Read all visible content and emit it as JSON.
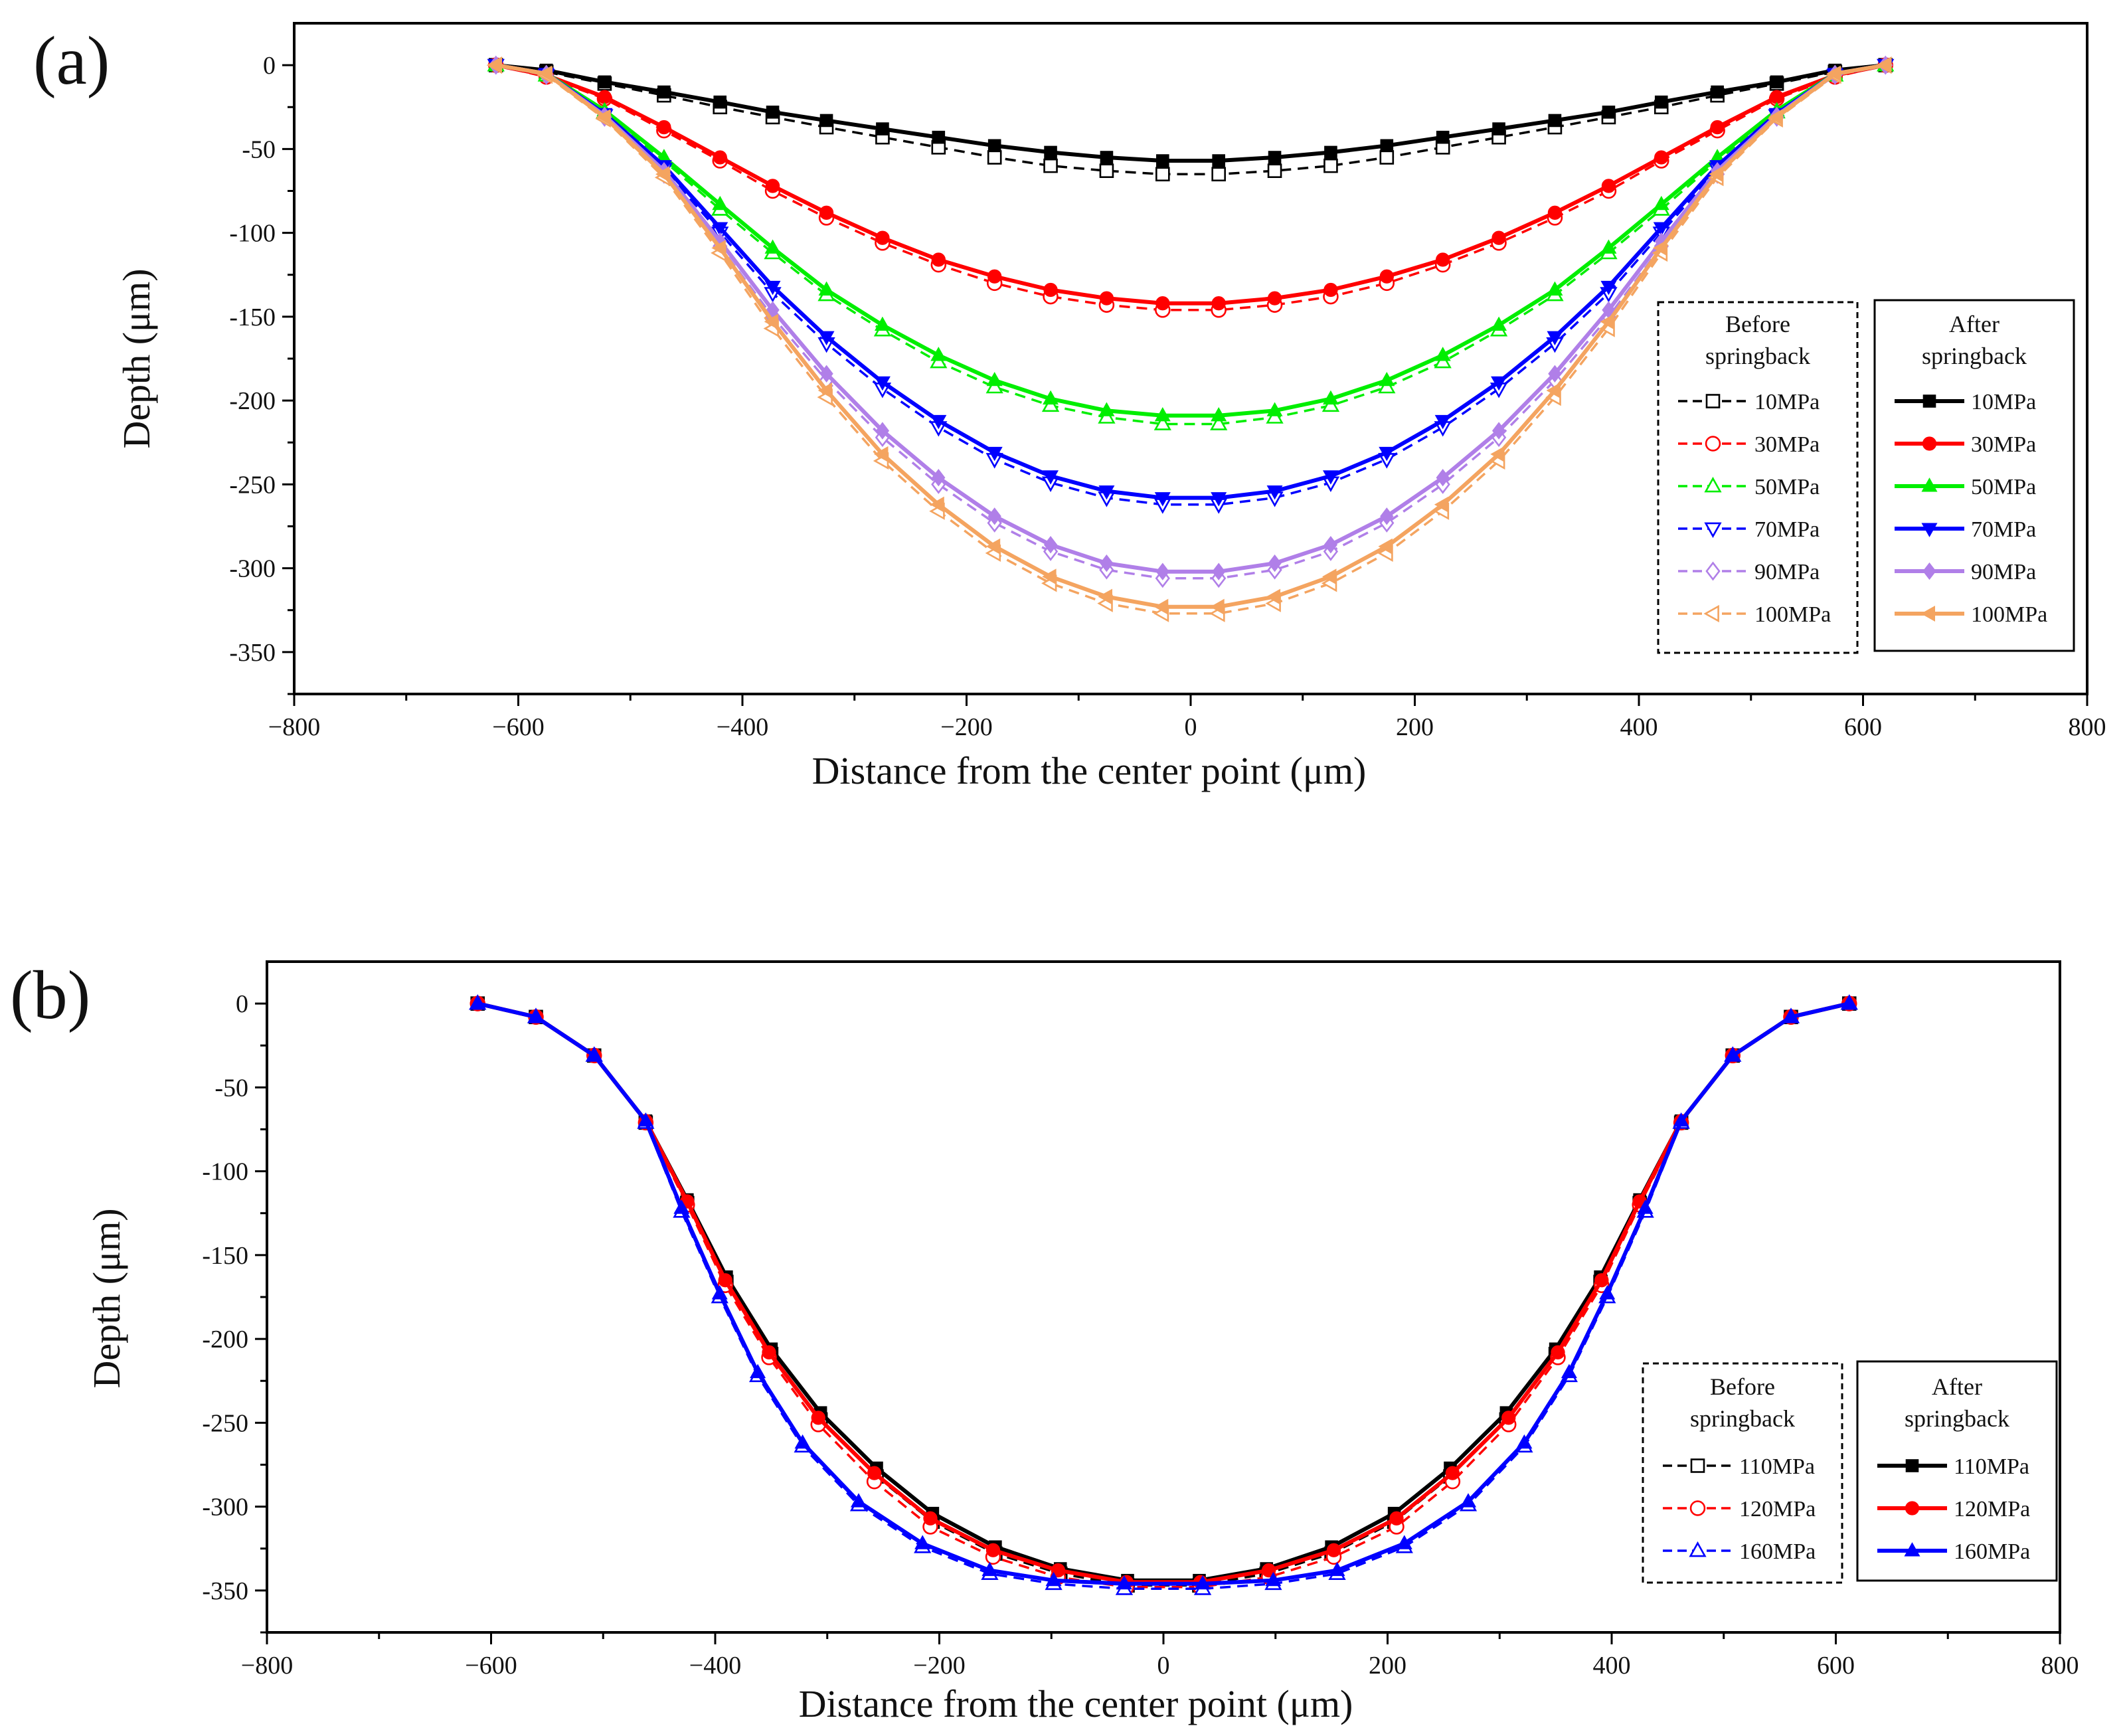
{
  "chart_data": [
    {
      "panel_label": "(a)",
      "type": "line",
      "xlabel": "Distance from the center point (μm)",
      "ylabel": "Depth (μm)",
      "xlim": [
        -800,
        800
      ],
      "ylim": [
        -375,
        25
      ],
      "xticks": [
        -800,
        -600,
        -400,
        -200,
        0,
        200,
        400,
        600,
        800
      ],
      "xtick_labels": [
        "−800",
        "−600",
        "−400",
        "−200",
        "0",
        "200",
        "400",
        "600",
        "800"
      ],
      "yticks": [
        0,
        -50,
        -100,
        -150,
        -200,
        -250,
        -300,
        -350
      ],
      "ytick_labels": [
        "0",
        "-50",
        "-100",
        "-150",
        "-200",
        "-250",
        "-300",
        "-350"
      ],
      "x": [
        -620,
        -575,
        -523,
        -470,
        -420,
        -373,
        -325,
        -275,
        -225,
        -175,
        -125,
        -75,
        -25,
        25,
        75,
        125,
        175,
        225,
        275,
        325,
        373,
        420,
        470,
        523,
        575,
        620
      ],
      "legend_groups": [
        {
          "title": "Before springback",
          "title_lines": [
            "Before",
            "springback"
          ],
          "style": "dashed",
          "filled": false
        },
        {
          "title": "After springback",
          "title_lines": [
            "After",
            "springback"
          ],
          "style": "solid",
          "filled": true
        }
      ],
      "series": [
        {
          "name": "10MPa",
          "color": "#000000",
          "marker": "square",
          "before": [
            0,
            -4,
            -11,
            -18,
            -25,
            -31,
            -37,
            -43,
            -49,
            -55,
            -60,
            -63,
            -65,
            -65,
            -63,
            -60,
            -55,
            -49,
            -43,
            -37,
            -31,
            -25,
            -18,
            -11,
            -4,
            0
          ],
          "after": [
            0,
            -3,
            -10,
            -16,
            -22,
            -28,
            -33,
            -38,
            -43,
            -48,
            -52,
            -55,
            -57,
            -57,
            -55,
            -52,
            -48,
            -43,
            -38,
            -33,
            -28,
            -22,
            -16,
            -10,
            -3,
            0
          ]
        },
        {
          "name": "30MPa",
          "color": "#ff0000",
          "marker": "circle",
          "before": [
            0,
            -7,
            -20,
            -39,
            -57,
            -75,
            -91,
            -106,
            -119,
            -130,
            -138,
            -143,
            -146,
            -146,
            -143,
            -138,
            -130,
            -119,
            -106,
            -91,
            -75,
            -57,
            -39,
            -20,
            -7,
            0
          ],
          "after": [
            0,
            -6,
            -19,
            -37,
            -55,
            -72,
            -88,
            -103,
            -116,
            -126,
            -134,
            -139,
            -142,
            -142,
            -139,
            -134,
            -126,
            -116,
            -103,
            -88,
            -72,
            -55,
            -37,
            -19,
            -6,
            0
          ]
        },
        {
          "name": "50MPa",
          "color": "#00ee00",
          "marker": "triangle-up",
          "before": [
            0,
            -6,
            -28,
            -57,
            -86,
            -112,
            -137,
            -158,
            -177,
            -192,
            -203,
            -210,
            -214,
            -214,
            -210,
            -203,
            -192,
            -177,
            -158,
            -137,
            -112,
            -86,
            -57,
            -28,
            -6,
            0
          ],
          "after": [
            0,
            -5,
            -27,
            -55,
            -83,
            -109,
            -134,
            -155,
            -173,
            -188,
            -199,
            -206,
            -209,
            -209,
            -206,
            -199,
            -188,
            -173,
            -155,
            -134,
            -109,
            -83,
            -55,
            -27,
            -5,
            0
          ]
        },
        {
          "name": "70MPa",
          "color": "#0000ff",
          "marker": "triangle-down",
          "before": [
            0,
            -6,
            -30,
            -62,
            -100,
            -136,
            -166,
            -193,
            -216,
            -235,
            -249,
            -258,
            -262,
            -262,
            -258,
            -249,
            -235,
            -216,
            -193,
            -166,
            -136,
            -100,
            -62,
            -30,
            -6,
            0
          ],
          "after": [
            0,
            -5,
            -29,
            -60,
            -97,
            -132,
            -162,
            -189,
            -212,
            -231,
            -245,
            -254,
            -258,
            -258,
            -254,
            -245,
            -231,
            -212,
            -189,
            -162,
            -132,
            -97,
            -60,
            -29,
            -5,
            0
          ]
        },
        {
          "name": "90MPa",
          "color": "#b07fe8",
          "marker": "diamond",
          "before": [
            0,
            -6,
            -31,
            -65,
            -108,
            -150,
            -188,
            -222,
            -250,
            -273,
            -290,
            -301,
            -306,
            -306,
            -301,
            -290,
            -273,
            -250,
            -222,
            -188,
            -150,
            -108,
            -65,
            -31,
            -6,
            0
          ],
          "after": [
            0,
            -5,
            -30,
            -63,
            -105,
            -146,
            -184,
            -218,
            -246,
            -269,
            -286,
            -297,
            -302,
            -302,
            -297,
            -286,
            -269,
            -246,
            -218,
            -184,
            -146,
            -105,
            -63,
            -30,
            -5,
            0
          ]
        },
        {
          "name": "100MPa",
          "color": "#f4a460",
          "marker": "triangle-left",
          "before": [
            0,
            -6,
            -32,
            -67,
            -112,
            -157,
            -198,
            -236,
            -266,
            -291,
            -309,
            -321,
            -327,
            -327,
            -321,
            -309,
            -291,
            -266,
            -236,
            -198,
            -157,
            -112,
            -67,
            -32,
            -6,
            0
          ],
          "after": [
            0,
            -5,
            -31,
            -65,
            -109,
            -153,
            -194,
            -232,
            -262,
            -287,
            -305,
            -317,
            -323,
            -323,
            -317,
            -305,
            -287,
            -262,
            -232,
            -194,
            -153,
            -109,
            -65,
            -31,
            -5,
            0
          ]
        }
      ]
    },
    {
      "panel_label": "(b)",
      "type": "line",
      "xlabel": "Distance from the center point (μm)",
      "ylabel": "Depth (μm)",
      "xlim": [
        -800,
        800
      ],
      "ylim": [
        -375,
        25
      ],
      "xticks": [
        -800,
        -600,
        -400,
        -200,
        0,
        200,
        400,
        600,
        800
      ],
      "xtick_labels": [
        "−800",
        "−600",
        "−400",
        "−200",
        "0",
        "200",
        "400",
        "600",
        "800"
      ],
      "yticks": [
        0,
        -50,
        -100,
        -150,
        -200,
        -250,
        -300,
        -350
      ],
      "ytick_labels": [
        "0",
        "-50",
        "-100",
        "-150",
        "-200",
        "-250",
        "-300",
        "-350"
      ],
      "legend_groups": [
        {
          "title": "Before springback",
          "title_lines": [
            "Before",
            "springback"
          ],
          "style": "dashed",
          "filled": false
        },
        {
          "title": "After springback",
          "title_lines": [
            "After",
            "springback"
          ],
          "style": "solid",
          "filled": true
        }
      ],
      "series": [
        {
          "name": "110MPa",
          "color": "#000000",
          "marker": "square",
          "x": [
            -612,
            -560,
            -508,
            -462,
            -425,
            -390,
            -350,
            -306,
            -256,
            -206,
            -150,
            -92,
            -32,
            32,
            92,
            150,
            206,
            256,
            306,
            350,
            390,
            425,
            462,
            508,
            560,
            612
          ],
          "before": [
            0,
            -8,
            -31,
            -71,
            -119,
            -166,
            -209,
            -248,
            -282,
            -309,
            -328,
            -340,
            -347,
            -347,
            -340,
            -328,
            -309,
            -282,
            -248,
            -209,
            -166,
            -119,
            -71,
            -31,
            -8,
            0
          ],
          "after": [
            0,
            -8,
            -31,
            -70,
            -117,
            -163,
            -206,
            -244,
            -277,
            -304,
            -324,
            -337,
            -344,
            -344,
            -337,
            -324,
            -304,
            -277,
            -244,
            -206,
            -163,
            -117,
            -70,
            -31,
            -8,
            0
          ]
        },
        {
          "name": "120MPa",
          "color": "#ff0000",
          "marker": "circle",
          "x": [
            -612,
            -560,
            -508,
            -462,
            -425,
            -391,
            -352,
            -308,
            -258,
            -208,
            -152,
            -94,
            -33,
            33,
            94,
            152,
            208,
            258,
            308,
            352,
            391,
            425,
            462,
            508,
            560,
            612
          ],
          "before": [
            0,
            -8,
            -31,
            -71,
            -120,
            -168,
            -211,
            -251,
            -285,
            -312,
            -330,
            -342,
            -348,
            -348,
            -342,
            -330,
            -312,
            -285,
            -251,
            -211,
            -168,
            -120,
            -71,
            -31,
            -8,
            0
          ],
          "after": [
            0,
            -8,
            -31,
            -70,
            -118,
            -165,
            -208,
            -247,
            -280,
            -307,
            -326,
            -338,
            -345,
            -345,
            -338,
            -326,
            -307,
            -280,
            -247,
            -208,
            -165,
            -118,
            -70,
            -31,
            -8,
            0
          ]
        },
        {
          "name": "160MPa",
          "color": "#0000ff",
          "marker": "triangle-up",
          "x": [
            -612,
            -560,
            -508,
            -462,
            -430,
            -396,
            -362,
            -322,
            -272,
            -215,
            -155,
            -98,
            -35,
            35,
            98,
            155,
            215,
            272,
            322,
            362,
            396,
            430,
            462,
            508,
            560,
            612
          ],
          "before": [
            0,
            -8,
            -31,
            -71,
            -124,
            -175,
            -222,
            -264,
            -299,
            -324,
            -340,
            -346,
            -349,
            -349,
            -346,
            -340,
            -324,
            -299,
            -264,
            -222,
            -175,
            -124,
            -71,
            -31,
            -8,
            0
          ],
          "after": [
            0,
            -8,
            -31,
            -70,
            -122,
            -173,
            -220,
            -262,
            -297,
            -322,
            -338,
            -344,
            -346,
            -346,
            -344,
            -338,
            -322,
            -297,
            -262,
            -220,
            -173,
            -122,
            -70,
            -31,
            -8,
            0
          ]
        }
      ]
    }
  ]
}
